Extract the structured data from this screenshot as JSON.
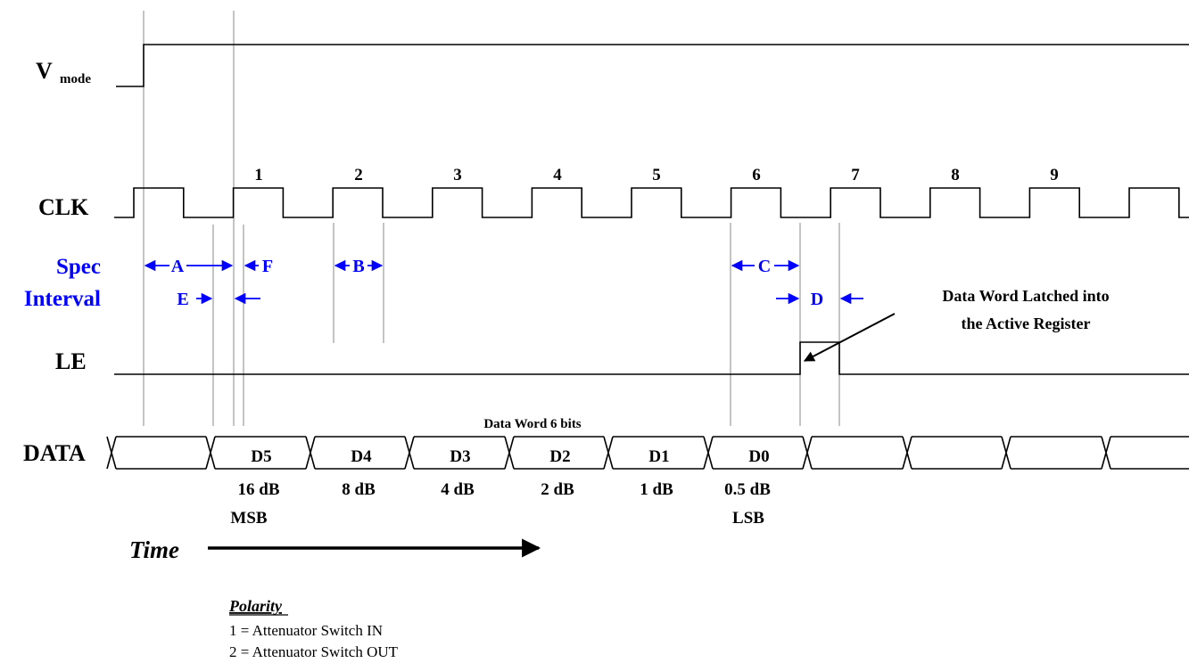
{
  "signals": {
    "vmode": "V",
    "vmode_sub": "mode",
    "clk": "CLK",
    "spec": "Spec",
    "interval": "Interval",
    "le": "LE",
    "data": "DATA"
  },
  "clock_numbers": [
    "1",
    "2",
    "3",
    "4",
    "5",
    "6",
    "7",
    "8",
    "9"
  ],
  "intervals": {
    "A": "A",
    "B": "B",
    "C": "C",
    "D": "D",
    "E": "E",
    "F": "F"
  },
  "data_word_label": "Data Word 6 bits",
  "bits": [
    {
      "name": "D5",
      "weight": "16 dB",
      "extra": "MSB"
    },
    {
      "name": "D4",
      "weight": "8 dB",
      "extra": ""
    },
    {
      "name": "D3",
      "weight": "4 dB",
      "extra": ""
    },
    {
      "name": "D2",
      "weight": "2 dB",
      "extra": ""
    },
    {
      "name": "D1",
      "weight": "1 dB",
      "extra": ""
    },
    {
      "name": "D0",
      "weight": "0.5 dB",
      "extra": "LSB"
    }
  ],
  "annotation": {
    "line1": "Data Word Latched into",
    "line2": "the Active Register"
  },
  "time_label": "Time",
  "polarity": {
    "heading": "Polarity",
    "items": [
      "1 = Attenuator Switch IN",
      "2 = Attenuator Switch OUT"
    ]
  }
}
